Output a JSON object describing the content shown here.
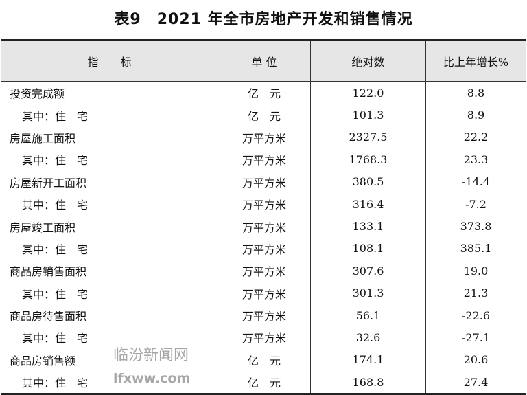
{
  "title": "表9　2021 年全市房地产开发和销售情况",
  "headers": [
    "指　　标",
    "单 位",
    "绝对数",
    "比上年增长%"
  ],
  "rows": [
    {
      "name": "投资完成额",
      "unit": "亿　元",
      "value": "122.0",
      "growth": "8.8",
      "sub": false
    },
    {
      "name": "其中：住　宅",
      "unit": "亿　元",
      "value": "101.3",
      "growth": "8.9",
      "sub": true
    },
    {
      "name": "房屋施工面积",
      "unit": "万平方米",
      "value": "2327.5",
      "growth": "22.2",
      "sub": false
    },
    {
      "name": "其中：住　宅",
      "unit": "万平方米",
      "value": "1768.3",
      "growth": "23.3",
      "sub": true
    },
    {
      "name": "房屋新开工面积",
      "unit": "万平方米",
      "value": "380.5",
      "growth": "-14.4",
      "sub": false
    },
    {
      "name": "其中：住　宅",
      "unit": "万平方米",
      "value": "316.4",
      "growth": "-7.2",
      "sub": true
    },
    {
      "name": "房屋竣工面积",
      "unit": "万平方米",
      "value": "133.1",
      "growth": "373.8",
      "sub": false
    },
    {
      "name": "其中：住　宅",
      "unit": "万平方米",
      "value": "108.1",
      "growth": "385.1",
      "sub": true
    },
    {
      "name": "商品房销售面积",
      "unit": "万平方米",
      "value": "307.6",
      "growth": "19.0",
      "sub": false
    },
    {
      "name": "其中：住　宅",
      "unit": "万平方米",
      "value": "301.3",
      "growth": "21.3",
      "sub": true
    },
    {
      "name": "商品房待售面积",
      "unit": "万平方米",
      "value": "56.1",
      "growth": "-22.6",
      "sub": false
    },
    {
      "name": "其中：住　宅",
      "unit": "万平方米",
      "value": "32.6",
      "growth": "-27.1",
      "sub": true
    },
    {
      "name": "商品房销售额",
      "unit": "亿　元",
      "value": "174.1",
      "growth": "20.6",
      "sub": false
    },
    {
      "name": "其中：住　宅",
      "unit": "亿　元",
      "value": "168.8",
      "growth": "27.4",
      "sub": true
    }
  ],
  "watermark": {
    "text": "临汾新闻网",
    "url_text": "lfxww.com"
  }
}
